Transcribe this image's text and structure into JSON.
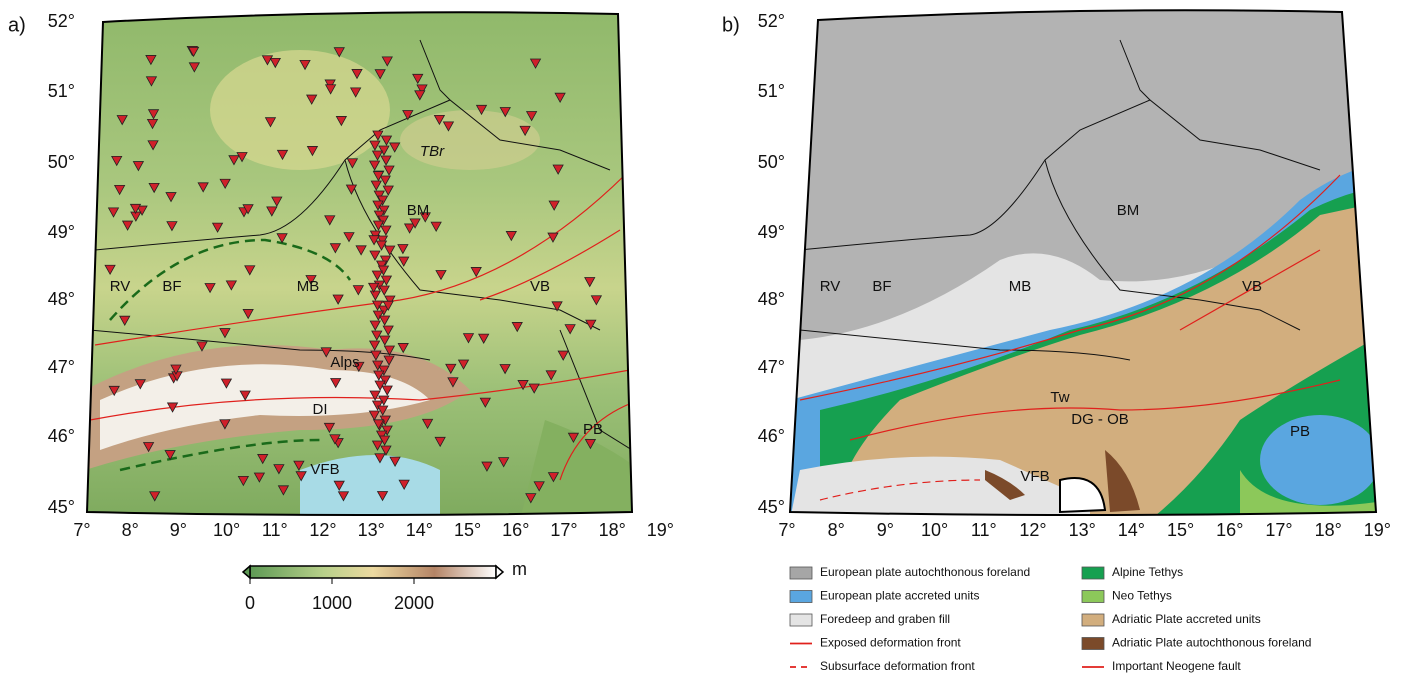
{
  "axes": {
    "lat_labels": [
      "52°",
      "51°",
      "50°",
      "49°",
      "48°",
      "47°",
      "46°",
      "45°"
    ],
    "lon_labels": [
      "7°",
      "8°",
      "9°",
      "10°",
      "11°",
      "12°",
      "13°",
      "14°",
      "15°",
      "16°",
      "17°",
      "18°",
      "19°"
    ]
  },
  "panel_a": {
    "label": "a)",
    "region_labels": [
      "RV",
      "BF",
      "MB",
      "BM",
      "TBr",
      "VB",
      "Alps",
      "DI",
      "VFB",
      "PB"
    ],
    "colorbar": {
      "ticks": [
        0,
        1000,
        2000
      ],
      "range": [
        0,
        3000
      ],
      "unit": "m"
    }
  },
  "panel_b": {
    "label": "b)",
    "region_labels": [
      "RV",
      "BF",
      "MB",
      "BM",
      "VB",
      "Tw",
      "DG - OB",
      "VFB",
      "PB"
    ],
    "legend": [
      {
        "label": "European plate autochthonous foreland",
        "kind": "box",
        "color": "#a6a6a6"
      },
      {
        "label": "European plate accreted units",
        "kind": "box",
        "color": "#5aa6e0"
      },
      {
        "label": "Foredeep and graben fill",
        "kind": "box",
        "color": "#e4e4e4"
      },
      {
        "label": "Exposed deformation front",
        "kind": "line",
        "color": "#e0201c"
      },
      {
        "label": "Subsurface deformation front",
        "kind": "dashed",
        "color": "#e0201c"
      },
      {
        "label": "Alpine Tethys",
        "kind": "box",
        "color": "#16a050"
      },
      {
        "label": "Neo Tethys",
        "kind": "box",
        "color": "#8cc85a"
      },
      {
        "label": "Adriatic Plate accreted units",
        "kind": "box",
        "color": "#d2ae7e"
      },
      {
        "label": "Adriatic Plate autochthonous foreland",
        "kind": "box",
        "color": "#7b4a2a"
      },
      {
        "label": "Important Neogene fault",
        "kind": "line",
        "color": "#e0201c"
      }
    ]
  }
}
